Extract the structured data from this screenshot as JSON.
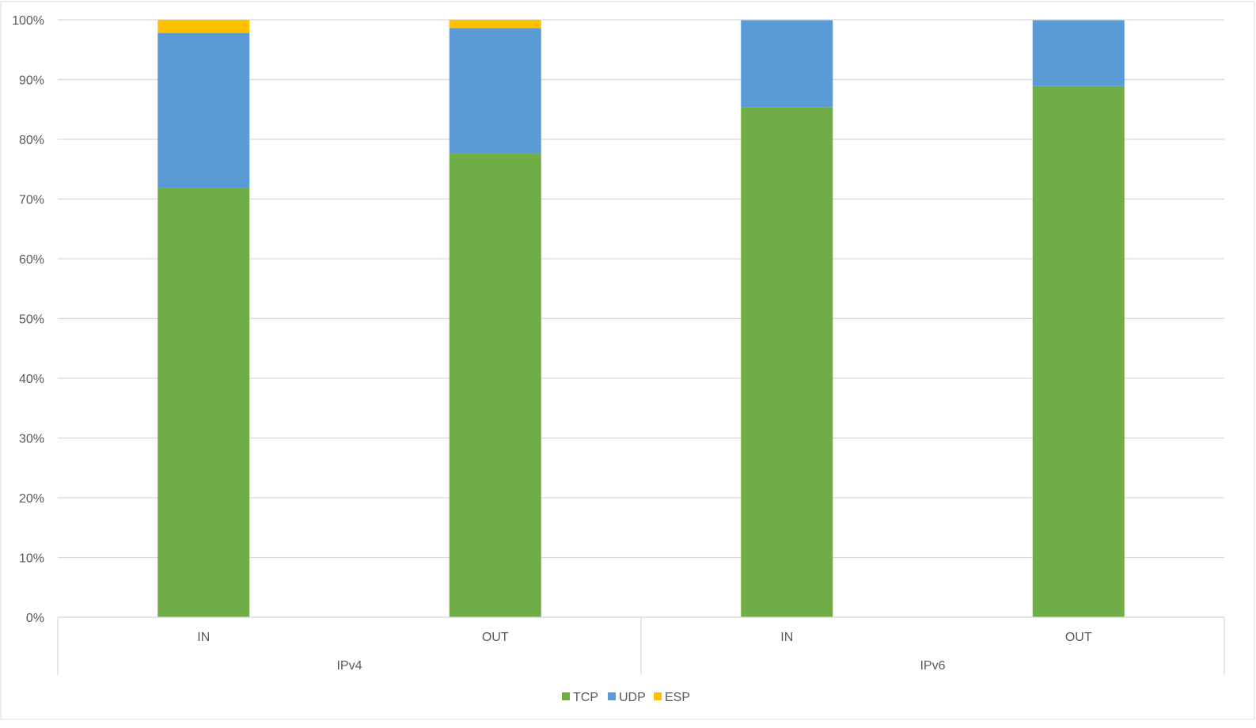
{
  "chart_data": {
    "type": "bar",
    "stacked": true,
    "percent": true,
    "groups": [
      {
        "label": "IPv4",
        "categories": [
          "IN",
          "OUT"
        ]
      },
      {
        "label": "IPv6",
        "categories": [
          "IN",
          "OUT"
        ]
      }
    ],
    "categories": [
      "IN",
      "OUT",
      "IN",
      "OUT"
    ],
    "series": [
      {
        "name": "TCP",
        "color": "#70AD47",
        "values": [
          71.8,
          77.6,
          85.4,
          88.9
        ]
      },
      {
        "name": "UDP",
        "color": "#5B9BD5",
        "values": [
          26.0,
          21.0,
          14.5,
          11.0
        ]
      },
      {
        "name": "ESP",
        "color": "#FFC000",
        "values": [
          2.2,
          1.4,
          0.1,
          0.1
        ]
      }
    ],
    "ylim": [
      0,
      100
    ],
    "yticks": [
      "0%",
      "10%",
      "20%",
      "30%",
      "40%",
      "50%",
      "60%",
      "70%",
      "80%",
      "90%",
      "100%"
    ],
    "grid": true,
    "legend_position": "bottom",
    "title": "",
    "xlabel": "",
    "ylabel": ""
  }
}
